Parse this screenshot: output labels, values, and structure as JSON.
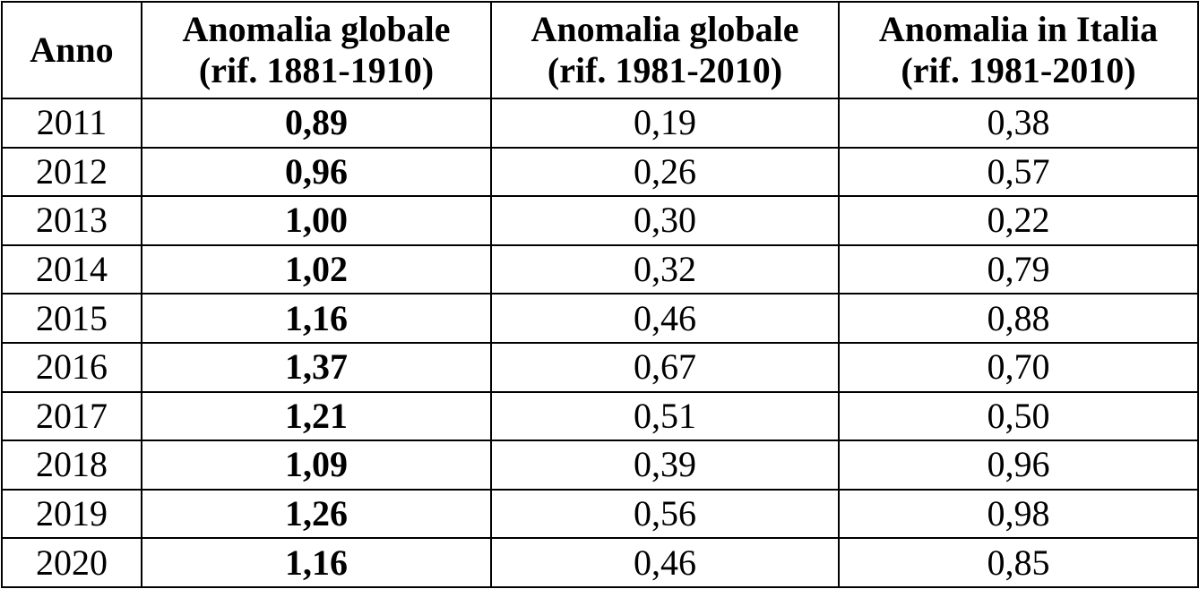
{
  "table": {
    "headers": [
      {
        "line1": "Anno",
        "line2": ""
      },
      {
        "line1": "Anomalia globale",
        "line2": "(rif. 1881-1910)"
      },
      {
        "line1": "Anomalia globale",
        "line2": "(rif. 1981-2010)"
      },
      {
        "line1": "Anomalia in Italia",
        "line2": "(rif. 1981-2010)"
      }
    ],
    "rows": [
      {
        "anno": "2011",
        "global_1881_1910": "0,89",
        "global_1981_2010": "0,19",
        "italia_1981_2010": "0,38"
      },
      {
        "anno": "2012",
        "global_1881_1910": "0,96",
        "global_1981_2010": "0,26",
        "italia_1981_2010": "0,57"
      },
      {
        "anno": "2013",
        "global_1881_1910": "1,00",
        "global_1981_2010": "0,30",
        "italia_1981_2010": "0,22"
      },
      {
        "anno": "2014",
        "global_1881_1910": "1,02",
        "global_1981_2010": "0,32",
        "italia_1981_2010": "0,79"
      },
      {
        "anno": "2015",
        "global_1881_1910": "1,16",
        "global_1981_2010": "0,46",
        "italia_1981_2010": "0,88"
      },
      {
        "anno": "2016",
        "global_1881_1910": "1,37",
        "global_1981_2010": "0,67",
        "italia_1981_2010": "0,70"
      },
      {
        "anno": "2017",
        "global_1881_1910": "1,21",
        "global_1981_2010": "0,51",
        "italia_1981_2010": "0,50"
      },
      {
        "anno": "2018",
        "global_1881_1910": "1,09",
        "global_1981_2010": "0,39",
        "italia_1981_2010": "0,96"
      },
      {
        "anno": "2019",
        "global_1881_1910": "1,26",
        "global_1981_2010": "0,56",
        "italia_1981_2010": "0,98"
      },
      {
        "anno": "2020",
        "global_1881_1910": "1,16",
        "global_1981_2010": "0,46",
        "italia_1981_2010": "0,85"
      }
    ]
  }
}
